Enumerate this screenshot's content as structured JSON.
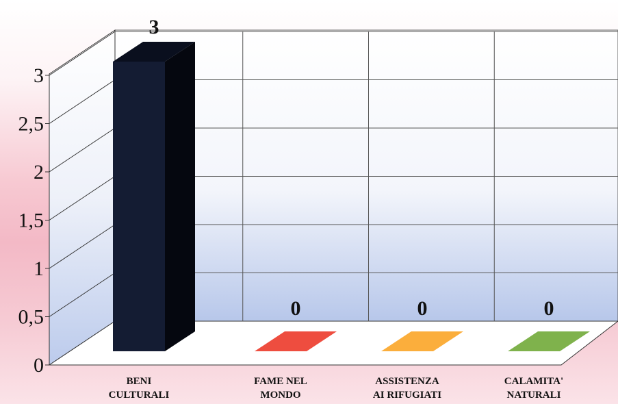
{
  "chart_data": {
    "type": "bar",
    "title": "",
    "xlabel": "",
    "ylabel": "",
    "ylim": [
      0,
      3
    ],
    "yticks": [
      "0",
      "0,5",
      "1",
      "1,5",
      "2",
      "2,5",
      "3"
    ],
    "categories": [
      [
        "BENI",
        "CULTURALI"
      ],
      [
        "FAME NEL",
        "MONDO"
      ],
      [
        "ASSISTENZA",
        "AI RIFUGIATI"
      ],
      [
        "CALAMITA'",
        "NATURALI"
      ]
    ],
    "values": [
      3,
      0,
      0,
      0
    ],
    "value_labels": [
      "3",
      "0",
      "0",
      "0"
    ],
    "colors": [
      "#141c33",
      "#ee4d3f",
      "#fbae3c",
      "#7fb24c"
    ],
    "grid": true,
    "legend": "none"
  }
}
